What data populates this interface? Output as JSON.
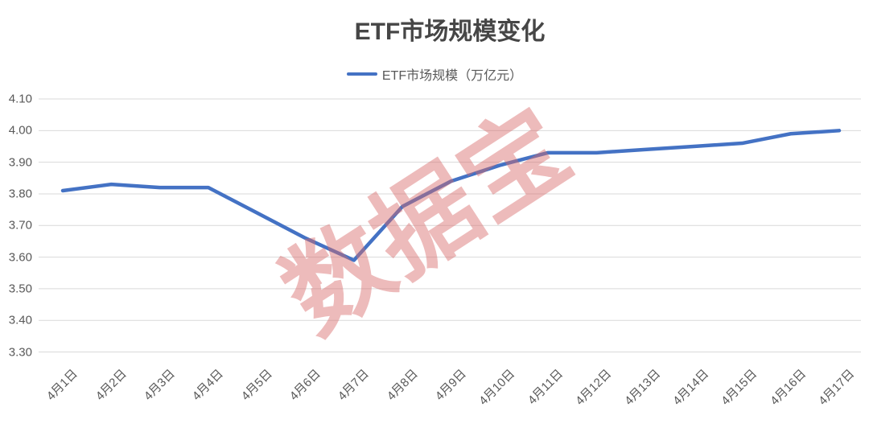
{
  "chart_data": {
    "type": "line",
    "title": "ETF市场规模变化",
    "categories": [
      "4月1日",
      "4月2日",
      "4月3日",
      "4月4日",
      "4月5日",
      "4月6日",
      "4月7日",
      "4月8日",
      "4月9日",
      "4月10日",
      "4月11日",
      "4月12日",
      "4月13日",
      "4月14日",
      "4月15日",
      "4月16日",
      "4月17日"
    ],
    "series": [
      {
        "name": "ETF市场规模（万亿元）",
        "color": "#4472c4",
        "values": [
          3.81,
          3.83,
          3.82,
          3.82,
          3.74,
          3.66,
          3.59,
          3.76,
          3.84,
          3.89,
          3.93,
          3.93,
          3.94,
          3.95,
          3.96,
          3.99,
          4.0
        ]
      }
    ],
    "xlabel": "",
    "ylabel": "",
    "ylim": [
      3.3,
      4.1
    ],
    "yticks": [
      "4.10",
      "4.00",
      "3.90",
      "3.80",
      "3.70",
      "3.60",
      "3.50",
      "3.40",
      "3.30"
    ],
    "grid": "horizontal",
    "legend_position": "top",
    "colors": {
      "grid_line": "#d9d9d9",
      "tick_label": "#595959",
      "title": "#464646"
    }
  },
  "watermark": {
    "text": "数据宝",
    "color": "#d96a6a"
  }
}
